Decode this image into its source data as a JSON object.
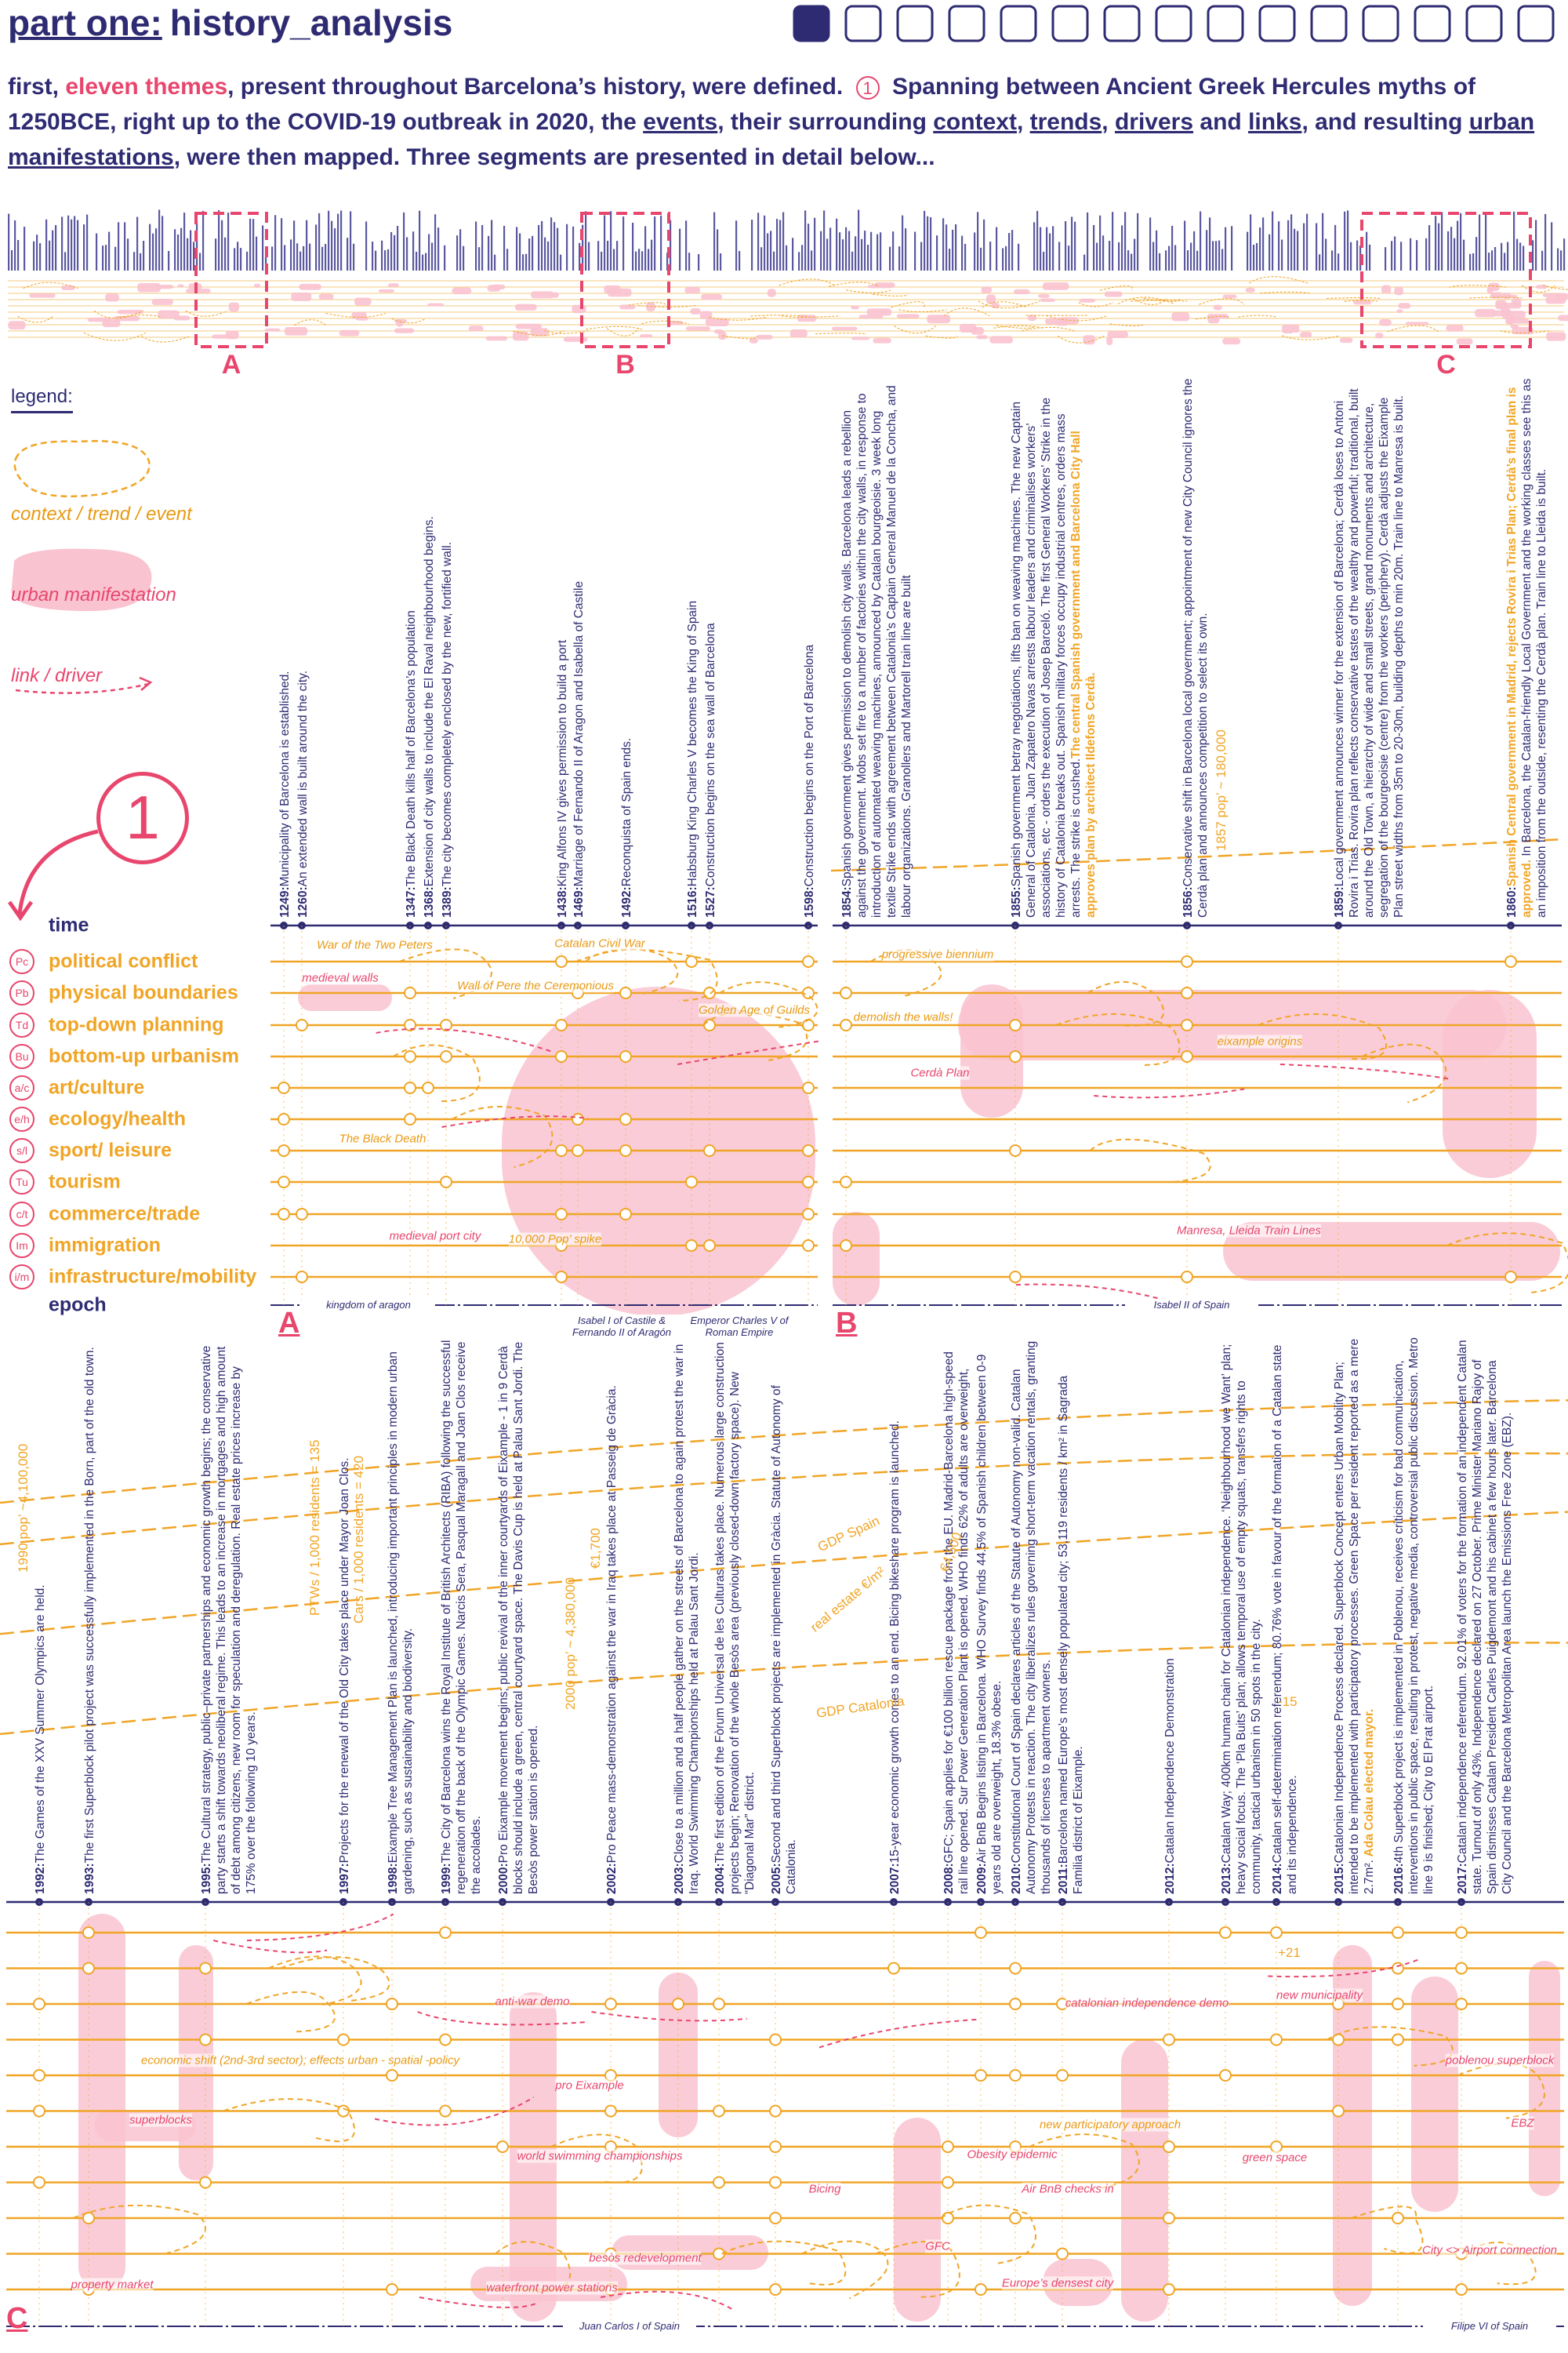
{
  "header": {
    "part": "part one:",
    "title": "history_analysis"
  },
  "intro": [
    "first, ",
    "eleven themes",
    ", present throughout Barcelona’s history, were defined. ",
    "1",
    " Spanning between Ancient Greek Hercules myths of 1250BCE, right up to the COVID-19 outbreak in 2020, the ",
    "events",
    ", their surrounding ",
    "context",
    ", ",
    "trends",
    ", ",
    "drivers",
    " and ",
    "links",
    ", and resulting ",
    "urban manifestations",
    ", were then mapped. Three segments are presented in detail below..."
  ],
  "legend": {
    "title": "legend:",
    "items": [
      "context / trend / event",
      "urban manifestation",
      "link / driver"
    ]
  },
  "callout": "1",
  "rows": {
    "time": "time",
    "epoch": "epoch"
  },
  "themes": [
    {
      "abbr": "Pc",
      "name": "political conflict"
    },
    {
      "abbr": "Pb",
      "name": "physical boundaries"
    },
    {
      "abbr": "Td",
      "name": "top-down planning"
    },
    {
      "abbr": "Bu",
      "name": "bottom-up urbanism"
    },
    {
      "abbr": "a/c",
      "name": "art/culture"
    },
    {
      "abbr": "e/h",
      "name": "ecology/health"
    },
    {
      "abbr": "s/l",
      "name": "sport/ leisure"
    },
    {
      "abbr": "Tu",
      "name": "tourism"
    },
    {
      "abbr": "c/t",
      "name": "commerce/trade"
    },
    {
      "abbr": "Im",
      "name": "immigration"
    },
    {
      "abbr": "i/m",
      "name": "infrastructure/mobility"
    }
  ],
  "segments": [
    {
      "label": "A",
      "events": [
        {
          "year": "1249:",
          "text": "Municipality of Barcelona is established."
        },
        {
          "year": "1260:",
          "text": "An extended wall is built around the city."
        },
        {
          "year": "1347:",
          "text": "The Black Death kills half of Barcelona’s population"
        },
        {
          "year": "1368:",
          "text": "Extension of city walls to include the El Raval neighbourhood begins."
        },
        {
          "year": "1389:",
          "text": "The city becomes completely enclosed by the new, fortified wall."
        },
        {
          "year": "1438:",
          "text": "King Alfons IV gives permission to build a port"
        },
        {
          "year": "1469:",
          "text": "Marriage of Fernando II of Aragon and Isabella of Castile"
        },
        {
          "year": "1492:",
          "text": "Reconquista of Spain ends."
        },
        {
          "year": "1516:",
          "text": "Habsburg King Charles V becomes the King of Spain"
        },
        {
          "year": "1527:",
          "text": "Construction begins on the sea wall of Barcelona"
        },
        {
          "year": "1598:",
          "text": "Construction begins on the Port of Barcelona"
        }
      ],
      "epochs": [
        "kingdom of aragon",
        "Isabel I of Castile & Fernando II of Aragón",
        "Emperor Charles V of Roman Empire"
      ],
      "annotations": [
        "War of the Two Peters",
        "medieval walls",
        "Wall of Pere the Ceremonious",
        "Catalan Civil War",
        "Golden Age of Guilds",
        "The Black Death",
        "medieval port city",
        "10,000 Pop’ spike"
      ],
      "trends": []
    },
    {
      "label": "B",
      "events": [
        {
          "year": "1854:",
          "text": "Spanish government gives permission to demolish city walls. Barcelona leads a rebellion against the government. Mobs set fire to a number of factories within the city walls, in response to introduction of automated weaving machines, announced by Catalan bourgeoisie. 3 week long textile Strike ends with agreement between Catalonia’s Captain General Manuel de la Concha, and labour organizations. Granollers and Martorell train line are built"
        },
        {
          "year": "1855:",
          "text": "Spanish government betray negotiations, lifts ban on weaving machines. The new Captain General of Catalonia, Juan Zapatero Navas arrests labour leaders and criminalises workers’ associations, etc - orders the execution of Josep Barceló. The first General Workers’ Strike in the history of Catalonia breaks out. Spanish military forces occupy industrial centres, orders mass arrests. The strike is crushed.",
          "highlight": "The central Spanish government and Barcelona City Hall approves plan by architect Ildefons Cerdà."
        },
        {
          "year": "1856:",
          "text": "Conservative shift in Barcelona local government; appointment of new City Council ignores the Cerdà plan and announces competition to select its own."
        },
        {
          "year": "1859:",
          "text": "Local government announces winner for the extension of Barcelona; Cerdà loses to Antoni Rovira i Trias. Rovira plan reflects conservative tastes of the wealthy and powerful; traditional, built around the Old Town, a hierarchy of wide and small streets, grand monuments and architecture, segregation of the bourgeoisie (centre) from the workers (periphery). Cerdà adjusts the Eixample Plan street widths from 35m to 20-30m, building depths to min 20m. Train line to Manresa is built."
        },
        {
          "year": "1860:",
          "text": "",
          "highlight": "Spanish Central government in Madrid, rejects Rovira i Trias Plan; Cerdà’s final plan is approved.",
          "after": " In Barcelona, the Catalan-friendly Local Government and the working classes see this as an imposition from the outside, resenting the Cerdà plan. Train line to Lleida is built."
        }
      ],
      "epochs": [
        "Isabel II of Spain"
      ],
      "annotations": [
        "progressive biennium",
        "demolish the walls!",
        "Cerdà Plan",
        "eixample origins",
        "Manresa, Lleida Train Lines"
      ],
      "trends": [
        "1857 pop’ ~ 180,000"
      ]
    },
    {
      "label": "C",
      "events": [
        {
          "year": "1992:",
          "text": "The Games of the XXV Summer Olympics are held."
        },
        {
          "year": "1993:",
          "text": "The first Superblock pilot project was successfully implemented in the Born, part of the old town."
        },
        {
          "year": "1995:",
          "text": "The Cultural strategy, public–private partnerships and economic growth begins; the conservative party starts a shift towards neoliberal regime. This leads to an increase in mortgages and high amount of debt among citizens, new room for speculation and deregulation. Real estate prices increase by 175% over the following 10 years."
        },
        {
          "year": "1997:",
          "text": "Projects for the renewal of the Old City takes place under Mayor Joan Clos."
        },
        {
          "year": "1998:",
          "text": "Eixample Tree Management Plan is launched, introducing important principles in modern urban gardening, such as sustainability and biodiversity."
        },
        {
          "year": "1999:",
          "text": "The City of Barcelona wins the Royal Institute of British Architects (RIBA) following the successful regeneration off the back of the Olympic Games. Narcis Sera, Pasqual Maragall and Joan Clos receive the accolades."
        },
        {
          "year": "2000:",
          "text": "Pro Eixample movement begins; public revival of the inner courtyards of Eixample - 1 in 9 Cerdà blocks should include a green, central courtyard space. The Davis Cup is held at Palau Sant Jordi. The Besòs power station is opened."
        },
        {
          "year": "2002:",
          "text": "Pro Peace mass-demonstration against the war in Iraq takes place at Passeig de Gràcia."
        },
        {
          "year": "2003:",
          "text": "Close to a million and a half people gather on the streets of Barcelona to again protest the war in Iraq. World Swimming Championships held at Palau Sant Jordi."
        },
        {
          "year": "2004:",
          "text": "The first edition of the Fòrum Universal de les Culturas takes place. Numerous large construction projects begin; Renovation of the whole Besòs area (previously closed-down factory space). New “Diagonal Mar” district."
        },
        {
          "year": "2005:",
          "text": "Second and third Superblock projects are implemented in Gràcia. Statute of Autonomy of Catalonia."
        },
        {
          "year": "2007:",
          "text": "15-year economic growth comes to an end. Bicing bikeshare program is launched."
        },
        {
          "year": "2008:",
          "text": "GFC; Spain applies for €100 billion rescue package from the EU. Madrid-Barcelona high-speed rail line opened. Sur Power Generation Plant is opened. WHO finds 62% of adults are overweight, 26.6% obese."
        },
        {
          "year": "2009:",
          "text": "Air BnB Begins listing in Barcelona. WHO Survey finds 44.5% of Spanish children between 0-9 years old are overweight, 18.3% obese."
        },
        {
          "year": "2010:",
          "text": "Constitutional Court of Spain declares articles of the Statute of Autonomy non-valid. Catalan Autonomy Protests in reaction. The city liberalizes rules governing short-term vacation rentals, granting thousands of licenses to apartment owners."
        },
        {
          "year": "2011:",
          "text": "Barcelona named Europe’s most densely populated city; 53,119 residents / km² in Sagrada Familia district of Eixample."
        },
        {
          "year": "2012:",
          "text": "Catalan Independence Demonstration"
        },
        {
          "year": "2013:",
          "text": "Catalan Way; 400km human chain for Catalonian independence. ‘Neighbourhood we Want’ plan; heavy social focus. The ‘Pla Buits’ plan; allows temporal use of empty squats, transfers rights to community, tactical urbanism in 50 spots in the city."
        },
        {
          "year": "2014:",
          "text": "Catalan self-determination referendum; 80.76% vote in favour of the formation of a Catalan state and its independence."
        },
        {
          "year": "2015:",
          "text": "Catalonian Independence Process declared. Superblock Concept enters Urban Mobility Plan; intended to be implemented with participatory processes. Green Space per resident reported as a mere 2.7m².",
          "highlight": " Ada Colau elected mayor."
        },
        {
          "year": "2016:",
          "text": "4th Superblock project is implemented in Poblenou, receives criticism for bad communication, interventions in public space, resulting in protest, negative media, controversial public discussion. Metro line 9 is finished; City to El Prat airport."
        },
        {
          "year": "2017:",
          "text": "Catalan independence referendum. 92.01% of voters for the formation of an independent Catalan state. Turnout of only 43%. Independence declared on 27 October. Prime Minister Mariano Rajoy of Spain dismisses Catalan President Carles Puigdemont and his cabinet a few hours later. Barcelona City Council and the Barcelona Metropolitan Area launch the Emissions Free Zone (EBZ)."
        }
      ],
      "epochs": [
        "Juan Carlos I of Spain",
        "Filipe VI of Spain"
      ],
      "annotations": [
        "anti-war demo",
        "catalonian independence demo",
        "new municipality",
        "economic shift (2nd-3rd sector); effects urban - spatial -policy",
        "pro Eixample",
        "poblenou superblock",
        "superblocks",
        "world swimming championships",
        "new participatory approach",
        "Obesity epidemic",
        "green space",
        "EBZ",
        "Bicing",
        "Air BnB checks in",
        "GFC",
        "City <> Airport connection",
        "besòs redevelopment",
        "property market",
        "waterfront power stations",
        "Europe’s densest city"
      ],
      "trends": [
        "1990 pop’ ~4,100,000",
        "PTWs / 1,000 residents = 135",
        "Cars / 1,000 residents = 420",
        "2000 pop’ ~ 4,380,000",
        "€1,700",
        "GDP Spain",
        "real estate €/m²",
        "€4,500",
        "GDP Catalonia",
        "-15",
        "+21"
      ]
    }
  ]
}
